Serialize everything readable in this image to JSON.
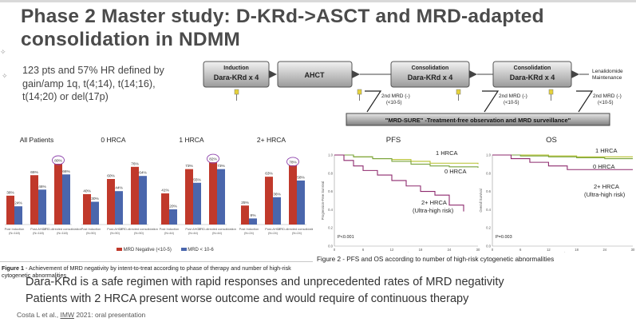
{
  "slide": {
    "title_line1": "Phase 2 Master study: D-KRd->ASCT and MRD-adapted",
    "title_line2": "consolidation in NDMM",
    "intro": "123 pts and 57% HR defined by gain/amp 1q, t(4;14), t(14;16), t(14;20) or del(17p)",
    "bullet1": "Dara-KRd is a safe regimen with rapid responses and unprecedented rates of MRD negativity",
    "bullet2": "Patients with 2 HRCA present worse outcome and would require of continuous therapy",
    "cite_pre": "Costa L et al., ",
    "cite_u": "IMW",
    "cite_post": " 2021: oral presentation"
  },
  "scheme": {
    "induction_label": "Induction",
    "induction_box": "Dara-KRd x 4",
    "ahct_box": "AHCT",
    "consol1_label": "Consolidation",
    "consol1_box": "Dara-KRd x 4",
    "consol2_label": "Consolidation",
    "consol2_box": "Dara-KRd x 4",
    "maint_label1": "Lenalidomide",
    "maint_label2": "Maintenance",
    "mrd_label": "2nd MRD (-)",
    "mrd_sub": "(<10-5)",
    "mrd_sure": "\"MRD-SURE\" -Treatment-free observation and MRD surveillance\""
  },
  "figure1": {
    "caption_bold": "Figure 1",
    "caption": " - Achievement of MRD negativity by intent-to-treat according to phase of therapy and number of high-risk cytogenetic abnormalities"
  },
  "figure2": {
    "caption": "Figure 2 - PFS and OS according to number of high-risk cytogenetic abnormalities"
  },
  "chart_data": [
    {
      "type": "bar",
      "title": "MRD negativity by phase of therapy",
      "groups": [
        "All Patients",
        "0 HRCA",
        "1 HRCA",
        "2+ HRCA"
      ],
      "categories": [
        [
          "Post Induction (N=118)",
          "Post-AHCT (N=118)",
          "MRD-directed consolidation (N=118)"
        ],
        [
          "Post Induction (N=50)",
          "Post-AHCT (N=50)",
          "MRD-directed consolidation (N=50)"
        ],
        [
          "Post Induction (N=44)",
          "Post AHCT (N=44)",
          "MRD-directed consolidation (N=44)"
        ],
        [
          "Post Induction (N=24)",
          "Post-AHCT (N=24)",
          "MRD-directed consolidation (N=24)"
        ]
      ],
      "series": [
        {
          "name": "MRD Negative (<10-5)",
          "color": "#c0392b",
          "values": [
            [
              38,
              65,
              80
            ],
            [
              40,
              60,
              76
            ],
            [
              41,
              73,
              82
            ],
            [
              25,
              63,
              78
            ]
          ]
        },
        {
          "name": "MRD < 10-6",
          "color": "#4a66ac",
          "values": [
            [
              24,
              46,
              66
            ],
            [
              30,
              44,
              64
            ],
            [
              20,
              55,
              73
            ],
            [
              8,
              36,
              58
            ]
          ]
        }
      ],
      "labels": [
        [
          "38%",
          "24%",
          "65%",
          "46%",
          "80%",
          "66%"
        ],
        [
          "40%",
          "30%",
          "60%",
          "44%",
          "76%",
          "64%"
        ],
        [
          "41%",
          "20%",
          "73%",
          "55%",
          "82%",
          "73%"
        ],
        [
          "25%",
          "8%",
          "63%",
          "36%",
          "78%",
          "58%"
        ]
      ],
      "highlighted": [
        "80%",
        "82%",
        "78%"
      ],
      "ylim": [
        0,
        100
      ]
    },
    {
      "type": "line",
      "title": "PFS",
      "ylabel": "Progression-Free Survival",
      "xlabel": "Months",
      "xticks": [
        "0",
        "6",
        "12",
        "18",
        "24",
        "30"
      ],
      "yticks": [
        "0.0",
        "0.2",
        "0.4",
        "0.6",
        "0.8",
        "1.0"
      ],
      "xlim": [
        0,
        30
      ],
      "ylim": [
        0,
        1
      ],
      "series": [
        {
          "name": "1 HRCA",
          "color": "#b5c02a",
          "x": [
            0,
            4,
            8,
            12,
            16,
            20,
            24,
            30
          ],
          "y": [
            1.0,
            0.98,
            0.96,
            0.95,
            0.93,
            0.91,
            0.91,
            0.9
          ]
        },
        {
          "name": "0 HRCA",
          "color": "#78a33c",
          "x": [
            0,
            4,
            8,
            12,
            16,
            20,
            24,
            30
          ],
          "y": [
            1.0,
            0.98,
            0.96,
            0.93,
            0.9,
            0.88,
            0.87,
            0.86
          ]
        },
        {
          "name": "2+ HRCA (Ultra-high risk)",
          "color": "#8e2a6e",
          "x": [
            0,
            2,
            4,
            6,
            9,
            12,
            15,
            18,
            21,
            24,
            27
          ],
          "y": [
            1.0,
            0.94,
            0.88,
            0.83,
            0.78,
            0.72,
            0.66,
            0.6,
            0.56,
            0.45,
            0.38
          ]
        }
      ],
      "annotation": "P<0.001"
    },
    {
      "type": "line",
      "title": "OS",
      "ylabel": "Overall Survival",
      "xlabel": "Months",
      "xticks": [
        "0",
        "6",
        "12",
        "18",
        "24",
        "30"
      ],
      "yticks": [
        "0.0",
        "0.2",
        "0.4",
        "0.6",
        "0.8",
        "1.0"
      ],
      "xlim": [
        0,
        30
      ],
      "ylim": [
        0,
        1
      ],
      "series": [
        {
          "name": "1 HRCA",
          "color": "#b5c02a",
          "x": [
            0,
            6,
            12,
            18,
            24,
            30
          ],
          "y": [
            1.0,
            1.0,
            0.99,
            0.98,
            0.98,
            0.98
          ]
        },
        {
          "name": "0 HRCA",
          "color": "#78a33c",
          "x": [
            0,
            6,
            12,
            18,
            24,
            30
          ],
          "y": [
            1.0,
            0.99,
            0.98,
            0.97,
            0.96,
            0.96
          ]
        },
        {
          "name": "2+ HRCA (Ultra-high risk)",
          "color": "#8e2a6e",
          "x": [
            0,
            4,
            8,
            12,
            16,
            20,
            24,
            30
          ],
          "y": [
            1.0,
            0.96,
            0.92,
            0.88,
            0.84,
            0.84,
            0.84,
            0.84
          ]
        }
      ],
      "annotation": "P=0.003"
    }
  ]
}
